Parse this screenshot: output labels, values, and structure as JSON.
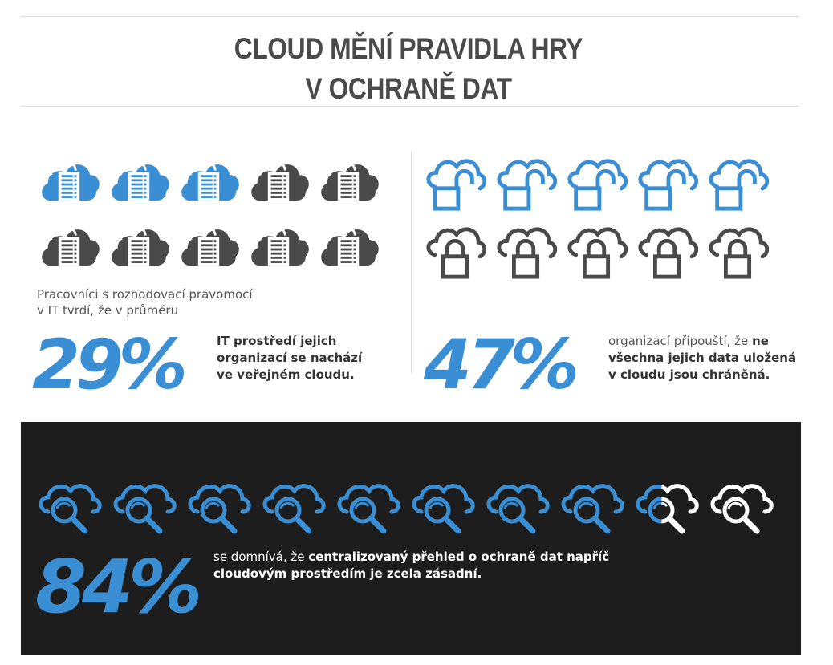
{
  "title": {
    "line1": "CLOUD MĚNÍ PRAVIDLA HRY",
    "line2": "V OCHRANĚ DAT"
  },
  "colors": {
    "accent": "#3a8ed3",
    "dark_icon": "#4a4a4a",
    "dark_panel": "#1d1d1d",
    "white": "#ffffff"
  },
  "stat1": {
    "intro_line1": "Pracovníci s rozhodovací pravomocí",
    "intro_line2": "v IT tvrdí, že v průměru",
    "value": "29%",
    "desc_bold_line1": "IT prostředí jejich",
    "desc_bold_line2": "organizací se nachází",
    "desc_bold_line3": "ve veřejném cloudu.",
    "icon": "cloud-server-icon",
    "icons_total": 10,
    "icons_highlighted": 3
  },
  "stat2": {
    "value": "47%",
    "desc_normal": "organizací připouští, že ",
    "desc_bold1": "ne",
    "desc_bold_line2": "všechna jejich data uložená",
    "desc_bold_line3": "v cloudu jsou chráněná.",
    "icon_unlocked": "cloud-unlocked-padlock-icon",
    "icon_locked": "cloud-locked-padlock-icon",
    "icons_total": 10,
    "icons_highlighted": 5
  },
  "stat3": {
    "value": "84%",
    "desc_normal": "se domnívá, že ",
    "desc_bold1": "centralizovaný přehled o ochraně dat napříč",
    "desc_bold_line2": "cloudovým prostředím je zcela zásadní.",
    "icon": "cloud-search-icon",
    "icons_total": 10,
    "icons_highlighted": 8.4
  }
}
